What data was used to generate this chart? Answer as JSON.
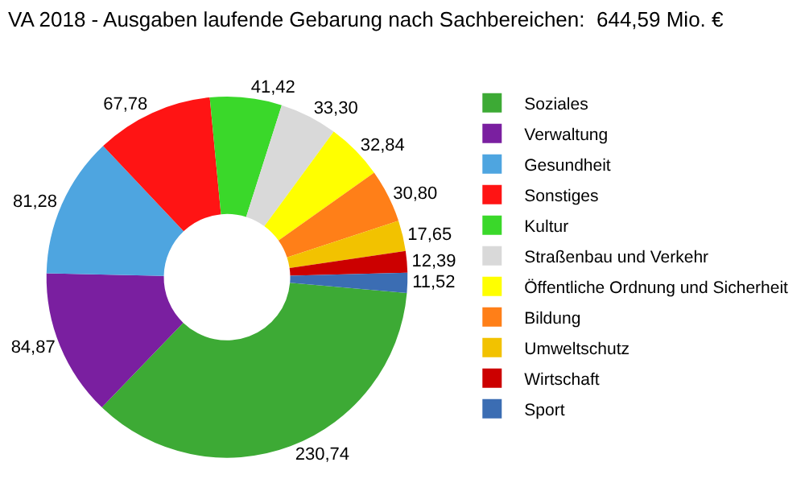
{
  "chart_data": {
    "type": "donut",
    "title": "VA 2018 - Ausgaben laufende Gebarung nach Sachbereichen:  644,59 Mio. €",
    "categories": [
      "Soziales",
      "Verwaltung",
      "Gesundheit",
      "Sonstiges",
      "Kultur",
      "Straßenbau und Verkehr",
      "Öffentliche Ordnung und Sicherheit",
      "Bildung",
      "Umweltschutz",
      "Wirtschaft",
      "Sport"
    ],
    "values": [
      230.74,
      84.87,
      81.28,
      67.78,
      41.42,
      33.3,
      32.84,
      30.8,
      17.65,
      12.39,
      11.52
    ],
    "value_labels": [
      "230,74",
      "84,87",
      "81,28",
      "67,78",
      "41,42",
      "33,30",
      "32,84",
      "30,80",
      "17,65",
      "12,39",
      "11,52"
    ],
    "colors": [
      "#3daa35",
      "#7a1fa0",
      "#4ea5e0",
      "#ff1414",
      "#3ad82a",
      "#d9d9d9",
      "#ffff00",
      "#ff7f18",
      "#f2c200",
      "#cc0000",
      "#3b6db3"
    ],
    "legend": "right"
  }
}
